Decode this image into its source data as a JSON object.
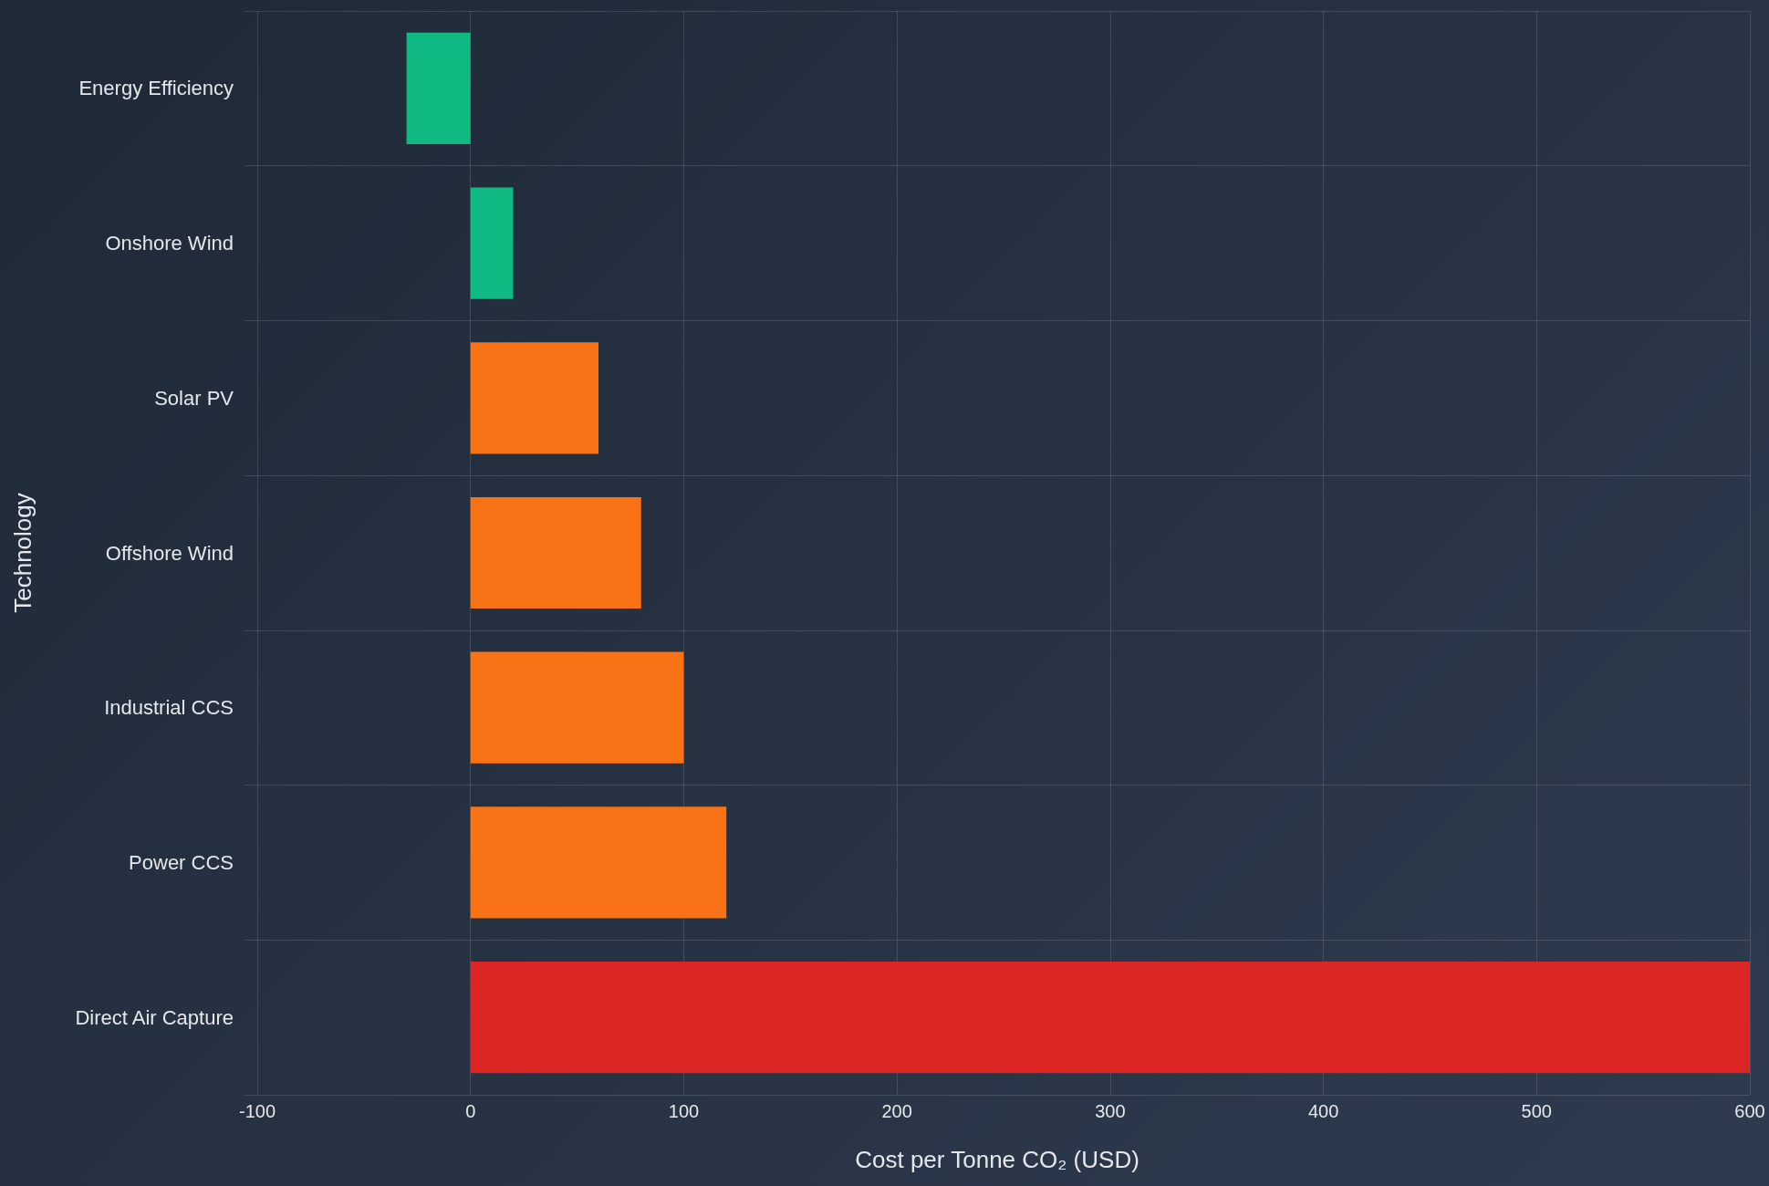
{
  "chart_data": {
    "type": "bar",
    "orientation": "horizontal",
    "xlabel": "Cost per Tonne CO₂ (USD)",
    "ylabel": "Technology",
    "categories": [
      "Energy Efficiency",
      "Onshore Wind",
      "Solar PV",
      "Offshore Wind",
      "Industrial CCS",
      "Power CCS",
      "Direct Air Capture"
    ],
    "values": [
      -30,
      20,
      60,
      80,
      100,
      120,
      600
    ],
    "colors": [
      "#10b981",
      "#10b981",
      "#f97316",
      "#f97316",
      "#f97316",
      "#f97316",
      "#dc2626"
    ],
    "xlim": [
      -106,
      600
    ],
    "xticks": [
      -100,
      0,
      100,
      200,
      300,
      400,
      500,
      600
    ],
    "grid": true
  }
}
